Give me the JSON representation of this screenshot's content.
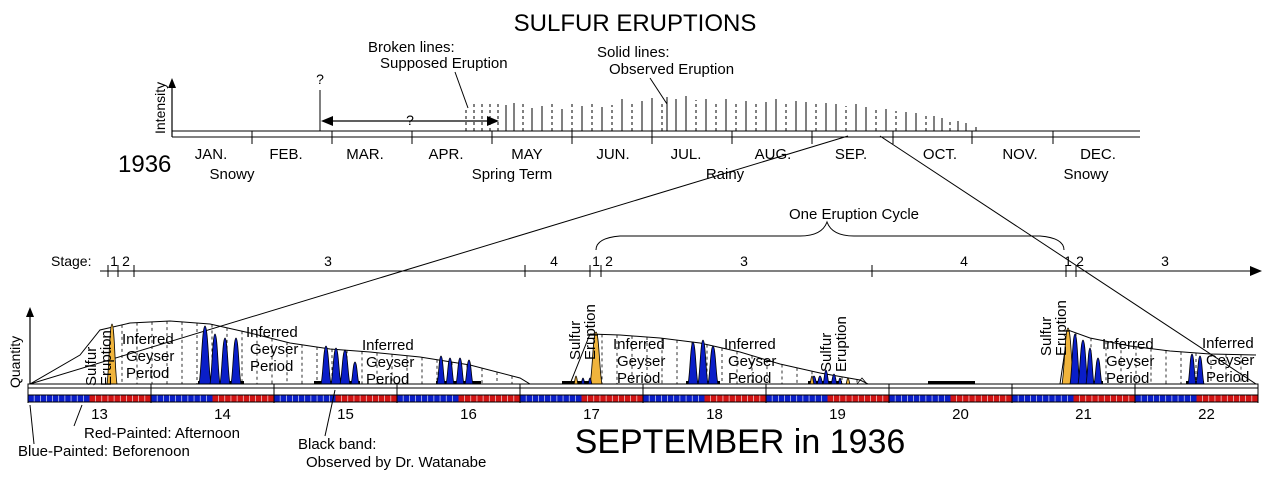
{
  "title": "SULFUR ERUPTIONS",
  "year_label": "1936",
  "intensity_axis_label": "Intensity",
  "quantity_axis_label": "Quantity",
  "months": [
    "JAN.",
    "FEB.",
    "MAR.",
    "APR.",
    "MAY",
    "JUN.",
    "JUL.",
    "AUG.",
    "SEP.",
    "OCT.",
    "NOV.",
    "DEC."
  ],
  "season_labels": [
    "Snowy",
    "Spring Term",
    "Rainy",
    "Snowy"
  ],
  "legend_broken": [
    "Broken lines:",
    "Supposed Eruption"
  ],
  "legend_solid": [
    "Solid lines:",
    "Observed Eruption"
  ],
  "question_mark": "?",
  "cycle_label": "One Eruption Cycle",
  "stage_prefix": "Stage:",
  "stages": [
    "1",
    "2",
    "3",
    "4",
    "1",
    "2",
    "3",
    "4",
    "1",
    "2",
    "3"
  ],
  "sulfur_eruption_label": [
    "Sulfur",
    "Eruption"
  ],
  "inferred_period_label": [
    "Inferred",
    "Geyser",
    "Period"
  ],
  "days": [
    "13",
    "14",
    "15",
    "16",
    "17",
    "18",
    "19",
    "20",
    "21",
    "22"
  ],
  "sept_title": "SEPTEMBER in 1936",
  "legend_red": "Red-Painted: Afternoon",
  "legend_blue": "Blue-Painted: Beforenoon",
  "legend_black": [
    "Black band:",
    "Observed by Dr. Watanabe"
  ],
  "colors": {
    "blue_fill": "#0a1ec8",
    "red_fill": "#d21414",
    "sulfur_fill": "#f0b43c",
    "black_band": "#000000"
  }
}
